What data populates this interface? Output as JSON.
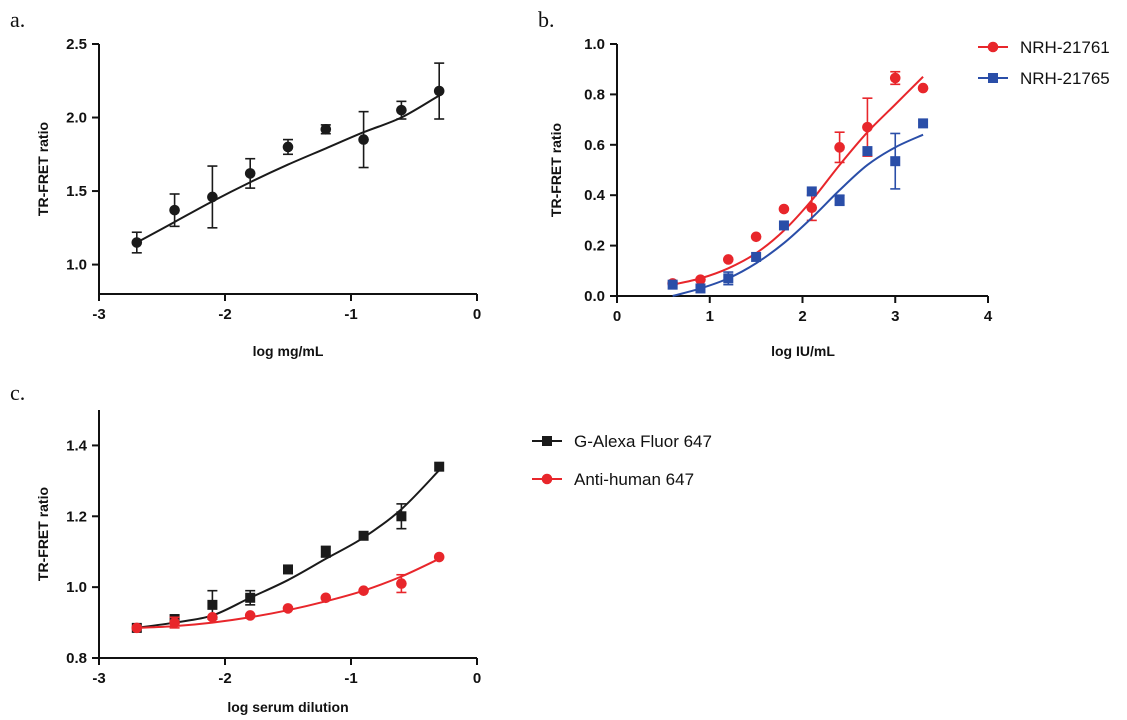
{
  "chart_data": [
    {
      "panel": "a.",
      "type": "scatter",
      "xlabel": "log mg/mL",
      "ylabel": "TR-FRET ratio",
      "xlim": [
        -3,
        0
      ],
      "ylim": [
        0.8,
        2.5
      ],
      "xticks": [
        -3,
        -2,
        -1,
        0
      ],
      "yticks": [
        1.0,
        1.5,
        2.0,
        2.5
      ],
      "ytick_labels": [
        "1.0",
        "1.5",
        "2.0",
        "2.5"
      ],
      "grid": false,
      "series": [
        {
          "color": "#1a1a1a",
          "marker": "circle",
          "x": [
            -2.7,
            -2.4,
            -2.1,
            -1.8,
            -1.5,
            -1.2,
            -0.9,
            -0.6,
            -0.3
          ],
          "y": [
            1.15,
            1.37,
            1.46,
            1.62,
            1.8,
            1.92,
            1.85,
            2.05,
            2.18
          ],
          "err": [
            0.07,
            0.11,
            0.21,
            0.1,
            0.05,
            0.03,
            0.19,
            0.06,
            0.19
          ],
          "fit": [
            [
              -2.7,
              1.15
            ],
            [
              -2.4,
              1.29
            ],
            [
              -2.1,
              1.43
            ],
            [
              -1.8,
              1.56
            ],
            [
              -1.5,
              1.68
            ],
            [
              -1.2,
              1.79
            ],
            [
              -0.9,
              1.9
            ],
            [
              -0.6,
              2.0
            ],
            [
              -0.3,
              2.15
            ]
          ]
        }
      ]
    },
    {
      "panel": "b.",
      "type": "scatter",
      "xlabel": "log IU/mL",
      "ylabel": "TR-FRET ratio",
      "xlim": [
        0,
        4
      ],
      "ylim": [
        0,
        1.0
      ],
      "xticks": [
        0,
        1,
        2,
        3,
        4
      ],
      "yticks": [
        0,
        0.2,
        0.4,
        0.6,
        0.8,
        1.0
      ],
      "ytick_labels": [
        "0.0",
        "0.2",
        "0.4",
        "0.6",
        "0.8",
        "1.0"
      ],
      "grid": false,
      "legend": "top-right",
      "series": [
        {
          "name": "NRH-21761",
          "color": "#e8262b",
          "marker": "circle",
          "x": [
            0.6,
            0.9,
            1.2,
            1.5,
            1.8,
            2.1,
            2.4,
            2.7,
            3.0,
            3.3
          ],
          "y": [
            0.05,
            0.065,
            0.145,
            0.235,
            0.345,
            0.35,
            0.59,
            0.67,
            0.865,
            0.825
          ],
          "err": [
            0,
            0,
            0,
            0,
            0,
            0.05,
            0.06,
            0.115,
            0.025,
            0
          ],
          "fit": [
            [
              0.6,
              0.045
            ],
            [
              0.9,
              0.07
            ],
            [
              1.2,
              0.11
            ],
            [
              1.5,
              0.17
            ],
            [
              1.8,
              0.26
            ],
            [
              2.1,
              0.38
            ],
            [
              2.4,
              0.52
            ],
            [
              2.7,
              0.65
            ],
            [
              3.0,
              0.76
            ],
            [
              3.3,
              0.87
            ]
          ]
        },
        {
          "name": "NRH-21765",
          "color": "#2a4ea8",
          "marker": "square",
          "x": [
            0.6,
            0.9,
            1.2,
            1.5,
            1.8,
            2.1,
            2.4,
            2.7,
            3.0,
            3.3
          ],
          "y": [
            0.045,
            0.03,
            0.07,
            0.155,
            0.28,
            0.415,
            0.38,
            0.575,
            0.535,
            0.685
          ],
          "err": [
            0,
            0,
            0.025,
            0,
            0,
            0,
            0.02,
            0,
            0.11,
            0
          ],
          "fit": [
            [
              0.6,
              0.0
            ],
            [
              0.9,
              0.03
            ],
            [
              1.2,
              0.07
            ],
            [
              1.5,
              0.13
            ],
            [
              1.8,
              0.21
            ],
            [
              2.1,
              0.31
            ],
            [
              2.4,
              0.42
            ],
            [
              2.7,
              0.52
            ],
            [
              3.0,
              0.59
            ],
            [
              3.3,
              0.64
            ]
          ]
        }
      ]
    },
    {
      "panel": "c.",
      "type": "scatter",
      "xlabel": "log serum dilution",
      "ylabel": "TR-FRET ratio",
      "xlim": [
        -3,
        0
      ],
      "ylim": [
        0.8,
        1.5
      ],
      "xticks": [
        -3,
        -2,
        -1,
        0
      ],
      "yticks": [
        0.8,
        1.0,
        1.2,
        1.4
      ],
      "ytick_labels": [
        "0.8",
        "1.0",
        "1.2",
        "1.4"
      ],
      "grid": false,
      "legend": "right",
      "series": [
        {
          "name": "G-Alexa Fluor 647",
          "color": "#1a1a1a",
          "marker": "square",
          "x": [
            -2.7,
            -2.4,
            -2.1,
            -1.8,
            -1.5,
            -1.2,
            -0.9,
            -0.6,
            -0.3
          ],
          "y": [
            0.885,
            0.91,
            0.95,
            0.97,
            1.05,
            1.1,
            1.145,
            1.2,
            1.34
          ],
          "err": [
            0,
            0,
            0.04,
            0.02,
            0,
            0.015,
            0,
            0.035,
            0
          ],
          "fit": [
            [
              -2.7,
              0.885
            ],
            [
              -2.4,
              0.9
            ],
            [
              -2.1,
              0.92
            ],
            [
              -1.8,
              0.97
            ],
            [
              -1.5,
              1.02
            ],
            [
              -1.2,
              1.08
            ],
            [
              -0.9,
              1.14
            ],
            [
              -0.6,
              1.22
            ],
            [
              -0.3,
              1.33
            ]
          ]
        },
        {
          "name": "Anti-human 647",
          "color": "#e8262b",
          "marker": "circle",
          "x": [
            -2.7,
            -2.4,
            -2.1,
            -1.8,
            -1.5,
            -1.2,
            -0.9,
            -0.6,
            -0.3
          ],
          "y": [
            0.885,
            0.9,
            0.915,
            0.92,
            0.94,
            0.97,
            0.99,
            1.01,
            1.085
          ],
          "err": [
            0,
            0.015,
            0,
            0,
            0,
            0,
            0,
            0.025,
            0
          ],
          "fit": [
            [
              -2.7,
              0.885
            ],
            [
              -2.4,
              0.89
            ],
            [
              -2.1,
              0.9
            ],
            [
              -1.8,
              0.915
            ],
            [
              -1.5,
              0.935
            ],
            [
              -1.2,
              0.96
            ],
            [
              -0.9,
              0.99
            ],
            [
              -0.6,
              1.03
            ],
            [
              -0.3,
              1.08
            ]
          ]
        }
      ]
    }
  ]
}
